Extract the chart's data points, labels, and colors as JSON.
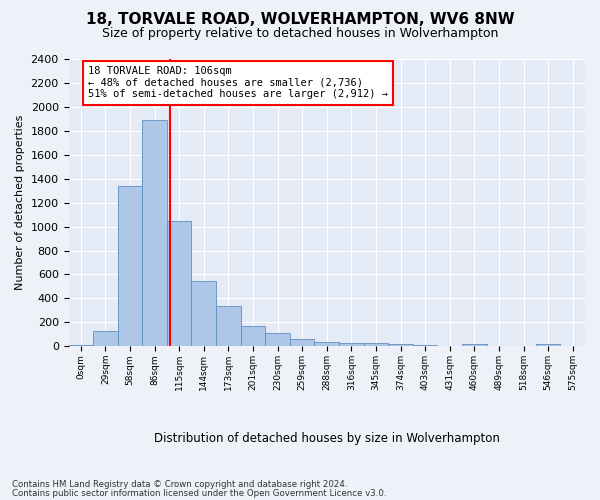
{
  "title": "18, TORVALE ROAD, WOLVERHAMPTON, WV6 8NW",
  "subtitle": "Size of property relative to detached houses in Wolverhampton",
  "xlabel": "Distribution of detached houses by size in Wolverhampton",
  "ylabel": "Number of detached properties",
  "bar_values": [
    15,
    125,
    1340,
    1890,
    1045,
    545,
    335,
    170,
    110,
    65,
    40,
    30,
    25,
    20,
    15,
    0,
    20,
    0,
    0,
    20,
    0
  ],
  "bar_labels": [
    "0sqm",
    "29sqm",
    "58sqm",
    "86sqm",
    "115sqm",
    "144sqm",
    "173sqm",
    "201sqm",
    "230sqm",
    "259sqm",
    "288sqm",
    "316sqm",
    "345sqm",
    "374sqm",
    "403sqm",
    "431sqm",
    "460sqm",
    "489sqm",
    "518sqm",
    "546sqm",
    "575sqm"
  ],
  "bar_color": "#aec6e8",
  "bar_edgecolor": "#6090c0",
  "red_line_x": 3.62,
  "highlight_label": "18 TORVALE ROAD: 106sqm",
  "smaller_pct": "48% of detached houses are smaller (2,736)",
  "larger_pct": "51% of semi-detached houses are larger (2,912)",
  "ylim": [
    0,
    2400
  ],
  "yticks": [
    0,
    200,
    400,
    600,
    800,
    1000,
    1200,
    1400,
    1600,
    1800,
    2000,
    2200,
    2400
  ],
  "footer1": "Contains HM Land Registry data © Crown copyright and database right 2024.",
  "footer2": "Contains public sector information licensed under the Open Government Licence v3.0.",
  "background_color": "#eef2f8",
  "plot_bg_color": "#e4eaf6"
}
